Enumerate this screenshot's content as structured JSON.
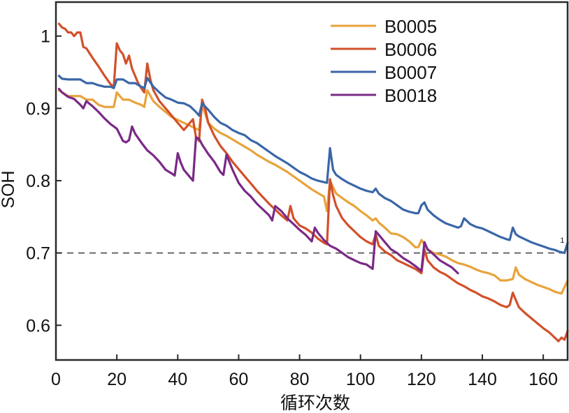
{
  "chart_data": {
    "type": "line",
    "title": "",
    "xlabel": "循环次数",
    "ylabel": "SOH",
    "xlim": [
      0,
      168
    ],
    "ylim": [
      0.552,
      1.047
    ],
    "xticks": [
      0,
      20,
      40,
      60,
      80,
      100,
      120,
      140,
      160
    ],
    "xtick_labels": [
      "0",
      "20",
      "40",
      "60",
      "80",
      "100",
      "120",
      "140",
      "160"
    ],
    "yticks": [
      0.6,
      0.7,
      0.8,
      0.9,
      1.0
    ],
    "ytick_labels": [
      "0.6",
      "0.7",
      "0.8",
      "0.9",
      "1"
    ],
    "grid": false,
    "legend_position": "top-right",
    "threshold": {
      "y": 0.7,
      "style": "dashed",
      "color": "#555555"
    },
    "annotation": {
      "text": "1",
      "x": 166,
      "y": 0.712
    },
    "series": [
      {
        "name": "B0005",
        "color": "#E8A33A",
        "x": [
          1,
          4,
          8,
          10,
          12,
          14,
          16,
          18,
          19,
          20,
          22,
          24,
          26,
          28,
          29,
          30,
          32,
          34,
          36,
          38,
          40,
          42,
          44,
          46,
          47,
          48,
          50,
          52,
          54,
          56,
          58,
          60,
          62,
          64,
          66,
          68,
          70,
          72,
          74,
          76,
          78,
          80,
          82,
          84,
          86,
          88,
          89,
          90,
          92,
          94,
          96,
          98,
          100,
          102,
          104,
          105,
          106,
          108,
          110,
          112,
          114,
          116,
          118,
          119,
          120,
          121,
          122,
          124,
          126,
          128,
          130,
          132,
          134,
          136,
          138,
          140,
          142,
          144,
          146,
          148,
          150,
          151,
          152,
          154,
          156,
          158,
          160,
          162,
          164,
          166,
          168
        ],
        "values": [
          0.925,
          0.917,
          0.917,
          0.912,
          0.912,
          0.905,
          0.902,
          0.902,
          0.902,
          0.922,
          0.912,
          0.912,
          0.908,
          0.905,
          0.902,
          0.925,
          0.91,
          0.902,
          0.895,
          0.888,
          0.884,
          0.88,
          0.876,
          0.872,
          0.87,
          0.905,
          0.88,
          0.872,
          0.866,
          0.862,
          0.857,
          0.852,
          0.847,
          0.842,
          0.836,
          0.831,
          0.826,
          0.822,
          0.817,
          0.812,
          0.806,
          0.8,
          0.794,
          0.788,
          0.783,
          0.778,
          0.758,
          0.8,
          0.782,
          0.776,
          0.77,
          0.765,
          0.758,
          0.752,
          0.745,
          0.748,
          0.742,
          0.735,
          0.727,
          0.726,
          0.722,
          0.716,
          0.708,
          0.708,
          0.718,
          0.712,
          0.705,
          0.7,
          0.698,
          0.695,
          0.69,
          0.686,
          0.684,
          0.681,
          0.677,
          0.674,
          0.672,
          0.669,
          0.662,
          0.662,
          0.664,
          0.68,
          0.67,
          0.664,
          0.66,
          0.656,
          0.653,
          0.65,
          0.646,
          0.644,
          0.662
        ]
      },
      {
        "name": "B0006",
        "color": "#D2502A",
        "x": [
          1,
          2,
          3,
          4,
          5,
          6,
          7,
          8,
          9,
          10,
          12,
          14,
          16,
          18,
          19,
          20,
          21,
          22,
          23,
          24,
          25,
          26,
          27,
          28,
          29,
          30,
          31,
          32,
          34,
          36,
          38,
          40,
          42,
          44,
          45,
          46,
          47,
          48,
          49,
          50,
          52,
          54,
          56,
          58,
          60,
          62,
          64,
          66,
          68,
          70,
          72,
          74,
          76,
          77,
          78,
          80,
          82,
          84,
          86,
          88,
          89,
          90,
          91,
          92,
          94,
          96,
          98,
          100,
          102,
          104,
          105,
          106,
          108,
          110,
          112,
          114,
          116,
          118,
          120,
          121,
          122,
          124,
          126,
          128,
          130,
          132,
          134,
          136,
          138,
          140,
          142,
          144,
          146,
          148,
          149,
          150,
          151,
          152,
          154,
          156,
          158,
          160,
          162,
          164,
          165,
          166,
          167,
          168
        ],
        "values": [
          1.017,
          1.012,
          1.01,
          1.005,
          1.005,
          1.0,
          1.005,
          1.005,
          0.985,
          0.983,
          0.97,
          0.958,
          0.945,
          0.933,
          0.93,
          0.99,
          0.98,
          0.975,
          0.962,
          0.973,
          0.955,
          0.945,
          0.935,
          0.928,
          0.922,
          0.962,
          0.94,
          0.925,
          0.91,
          0.9,
          0.89,
          0.88,
          0.87,
          0.88,
          0.885,
          0.86,
          0.855,
          0.912,
          0.9,
          0.88,
          0.862,
          0.848,
          0.838,
          0.826,
          0.816,
          0.806,
          0.796,
          0.786,
          0.777,
          0.768,
          0.76,
          0.752,
          0.745,
          0.765,
          0.748,
          0.738,
          0.734,
          0.728,
          0.72,
          0.714,
          0.712,
          0.802,
          0.78,
          0.765,
          0.748,
          0.738,
          0.73,
          0.722,
          0.716,
          0.712,
          0.726,
          0.71,
          0.702,
          0.697,
          0.69,
          0.686,
          0.682,
          0.678,
          0.672,
          0.705,
          0.69,
          0.68,
          0.674,
          0.67,
          0.664,
          0.658,
          0.654,
          0.649,
          0.645,
          0.64,
          0.637,
          0.633,
          0.628,
          0.625,
          0.628,
          0.645,
          0.635,
          0.625,
          0.617,
          0.61,
          0.603,
          0.596,
          0.59,
          0.582,
          0.578,
          0.583,
          0.58,
          0.592
        ]
      },
      {
        "name": "B0007",
        "color": "#3A66A8",
        "x": [
          1,
          2,
          4,
          6,
          8,
          10,
          12,
          14,
          16,
          18,
          19,
          20,
          22,
          24,
          26,
          28,
          29,
          30,
          32,
          34,
          36,
          38,
          40,
          42,
          44,
          46,
          47,
          48,
          50,
          52,
          54,
          56,
          58,
          60,
          62,
          64,
          66,
          68,
          70,
          72,
          74,
          76,
          78,
          80,
          82,
          84,
          86,
          88,
          89,
          90,
          91,
          92,
          94,
          96,
          98,
          100,
          102,
          104,
          105,
          106,
          108,
          110,
          112,
          114,
          116,
          118,
          119,
          120,
          121,
          122,
          124,
          126,
          128,
          130,
          132,
          133,
          134,
          136,
          138,
          140,
          142,
          144,
          146,
          148,
          149,
          150,
          151,
          152,
          154,
          156,
          158,
          160,
          162,
          164,
          165,
          166,
          167,
          168
        ],
        "values": [
          0.945,
          0.941,
          0.94,
          0.94,
          0.94,
          0.935,
          0.935,
          0.932,
          0.93,
          0.93,
          0.928,
          0.94,
          0.94,
          0.935,
          0.935,
          0.93,
          0.928,
          0.942,
          0.93,
          0.922,
          0.915,
          0.912,
          0.908,
          0.907,
          0.903,
          0.895,
          0.89,
          0.907,
          0.898,
          0.888,
          0.88,
          0.876,
          0.87,
          0.866,
          0.863,
          0.856,
          0.852,
          0.846,
          0.84,
          0.834,
          0.829,
          0.824,
          0.818,
          0.812,
          0.808,
          0.803,
          0.8,
          0.798,
          0.797,
          0.845,
          0.815,
          0.808,
          0.802,
          0.797,
          0.793,
          0.789,
          0.786,
          0.784,
          0.789,
          0.782,
          0.776,
          0.772,
          0.766,
          0.76,
          0.757,
          0.755,
          0.755,
          0.766,
          0.77,
          0.76,
          0.752,
          0.746,
          0.741,
          0.738,
          0.735,
          0.737,
          0.748,
          0.74,
          0.736,
          0.734,
          0.73,
          0.726,
          0.722,
          0.719,
          0.718,
          0.735,
          0.726,
          0.723,
          0.719,
          0.715,
          0.712,
          0.709,
          0.706,
          0.704,
          0.702,
          0.701,
          0.7,
          0.714
        ]
      },
      {
        "name": "B0018",
        "color": "#7A2A86",
        "x": [
          1,
          2,
          4,
          6,
          8,
          9,
          10,
          12,
          14,
          16,
          18,
          20,
          22,
          23,
          24,
          25,
          26,
          28,
          30,
          32,
          34,
          36,
          38,
          39,
          40,
          41,
          42,
          44,
          45,
          46,
          47,
          48,
          50,
          52,
          54,
          55,
          56,
          58,
          60,
          62,
          64,
          66,
          68,
          70,
          71,
          72,
          74,
          76,
          78,
          80,
          82,
          84,
          85,
          86,
          88,
          90,
          92,
          94,
          96,
          98,
          100,
          102,
          104,
          105,
          106,
          108,
          110,
          112,
          114,
          116,
          118,
          120,
          121,
          122,
          124,
          126,
          128,
          130,
          132
        ],
        "values": [
          0.927,
          0.922,
          0.916,
          0.913,
          0.905,
          0.9,
          0.91,
          0.903,
          0.895,
          0.886,
          0.878,
          0.872,
          0.855,
          0.853,
          0.856,
          0.875,
          0.865,
          0.853,
          0.842,
          0.835,
          0.826,
          0.815,
          0.81,
          0.807,
          0.838,
          0.825,
          0.815,
          0.805,
          0.8,
          0.86,
          0.858,
          0.85,
          0.837,
          0.826,
          0.812,
          0.808,
          0.836,
          0.815,
          0.797,
          0.786,
          0.778,
          0.768,
          0.76,
          0.752,
          0.745,
          0.765,
          0.758,
          0.748,
          0.74,
          0.732,
          0.725,
          0.716,
          0.735,
          0.728,
          0.718,
          0.71,
          0.706,
          0.7,
          0.694,
          0.69,
          0.686,
          0.684,
          0.678,
          0.73,
          0.725,
          0.715,
          0.705,
          0.7,
          0.693,
          0.688,
          0.682,
          0.675,
          0.715,
          0.705,
          0.698,
          0.69,
          0.685,
          0.68,
          0.672
        ]
      }
    ]
  }
}
